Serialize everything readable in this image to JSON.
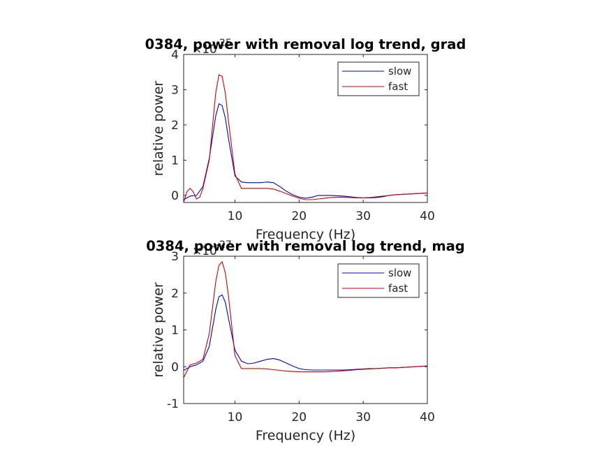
{
  "chart_data": [
    {
      "type": "line",
      "title": "0384, power with removal log trend, grad",
      "xlabel": "Frequency (Hz)",
      "ylabel": "relative power",
      "y_exponent": "×10",
      "y_exponent_power": "-25",
      "xlim": [
        2,
        40
      ],
      "ylim": [
        -0.2,
        4
      ],
      "xticks": [
        10,
        20,
        30,
        40
      ],
      "yticks": [
        0,
        1,
        2,
        3,
        4
      ],
      "grid": false,
      "legend": "top-right",
      "series": [
        {
          "name": "slow",
          "color": "#0000cc",
          "x": [
            2,
            3,
            4,
            5,
            6,
            7,
            7.5,
            8,
            8.5,
            9,
            10,
            11,
            12,
            13,
            14,
            15,
            16,
            17,
            18,
            19,
            20,
            21,
            22,
            23,
            24,
            25,
            26,
            27,
            28,
            29,
            30,
            31,
            32,
            33,
            34,
            35,
            36,
            37,
            38,
            39,
            40
          ],
          "y": [
            -0.12,
            -0.02,
            0.0,
            0.25,
            1.05,
            2.25,
            2.6,
            2.55,
            2.2,
            1.6,
            0.55,
            0.38,
            0.36,
            0.36,
            0.36,
            0.38,
            0.36,
            0.25,
            0.12,
            0.02,
            -0.05,
            -0.08,
            -0.05,
            0.0,
            0.0,
            0.0,
            -0.01,
            -0.02,
            -0.04,
            -0.06,
            -0.07,
            -0.07,
            -0.06,
            -0.04,
            0.0,
            0.02,
            0.03,
            0.04,
            0.05,
            0.06,
            0.07
          ]
        },
        {
          "name": "fast",
          "color": "#cc0000",
          "x": [
            2,
            2.5,
            3,
            3.5,
            4,
            4.5,
            5,
            6,
            7,
            7.5,
            8,
            8.5,
            9,
            10,
            11,
            12,
            13,
            14,
            15,
            16,
            17,
            18,
            19,
            20,
            21,
            22,
            23,
            24,
            25,
            26,
            27,
            28,
            29,
            30,
            31,
            32,
            33,
            34,
            35,
            36,
            37,
            38,
            39,
            40
          ],
          "y": [
            -0.2,
            0.1,
            0.2,
            0.1,
            -0.1,
            -0.05,
            0.2,
            1.0,
            2.9,
            3.42,
            3.38,
            2.9,
            2.1,
            0.6,
            0.2,
            0.2,
            0.2,
            0.2,
            0.2,
            0.18,
            0.12,
            0.05,
            -0.02,
            -0.08,
            -0.12,
            -0.12,
            -0.1,
            -0.08,
            -0.06,
            -0.05,
            -0.05,
            -0.06,
            -0.07,
            -0.07,
            -0.06,
            -0.04,
            -0.02,
            0.0,
            0.02,
            0.03,
            0.04,
            0.05,
            0.06,
            0.07
          ]
        }
      ]
    },
    {
      "type": "line",
      "title": "0384, power with removal log trend, mag",
      "xlabel": "Frequency (Hz)",
      "ylabel": "relative power",
      "y_exponent": "×10",
      "y_exponent_power": "-27",
      "xlim": [
        2,
        40
      ],
      "ylim": [
        -1,
        3
      ],
      "xticks": [
        10,
        20,
        30,
        40
      ],
      "yticks": [
        -1,
        0,
        1,
        2,
        3
      ],
      "grid": false,
      "legend": "top-right",
      "series": [
        {
          "name": "slow",
          "color": "#0000cc",
          "x": [
            2,
            3,
            4,
            5,
            6,
            7,
            7.5,
            8,
            8.5,
            9,
            10,
            11,
            12,
            13,
            14,
            15,
            16,
            17,
            18,
            19,
            20,
            21,
            22,
            23,
            24,
            25,
            26,
            27,
            28,
            29,
            30,
            31,
            32,
            33,
            34,
            35,
            36,
            37,
            38,
            39,
            40
          ],
          "y": [
            -0.1,
            0.0,
            0.05,
            0.15,
            0.55,
            1.55,
            1.9,
            1.95,
            1.75,
            1.3,
            0.45,
            0.15,
            0.08,
            0.1,
            0.15,
            0.2,
            0.22,
            0.18,
            0.1,
            0.02,
            -0.05,
            -0.08,
            -0.09,
            -0.09,
            -0.09,
            -0.09,
            -0.09,
            -0.09,
            -0.08,
            -0.07,
            -0.06,
            -0.05,
            -0.05,
            -0.04,
            -0.03,
            -0.03,
            -0.02,
            -0.01,
            0.0,
            0.01,
            0.02
          ]
        },
        {
          "name": "fast",
          "color": "#cc0000",
          "x": [
            2,
            3,
            4,
            5,
            6,
            7,
            7.5,
            8,
            8.5,
            9,
            10,
            11,
            12,
            13,
            14,
            15,
            16,
            17,
            18,
            19,
            20,
            21,
            22,
            23,
            24,
            25,
            26,
            27,
            28,
            29,
            30,
            31,
            32,
            33,
            34,
            35,
            36,
            37,
            38,
            39,
            40
          ],
          "y": [
            -0.3,
            0.05,
            0.1,
            0.2,
            0.9,
            2.3,
            2.75,
            2.85,
            2.55,
            1.9,
            0.3,
            -0.05,
            -0.05,
            -0.05,
            -0.05,
            -0.06,
            -0.08,
            -0.1,
            -0.12,
            -0.13,
            -0.14,
            -0.14,
            -0.14,
            -0.14,
            -0.14,
            -0.13,
            -0.12,
            -0.11,
            -0.1,
            -0.08,
            -0.07,
            -0.06,
            -0.05,
            -0.04,
            -0.03,
            -0.03,
            -0.02,
            -0.01,
            0.0,
            0.01,
            0.02
          ]
        }
      ]
    }
  ]
}
